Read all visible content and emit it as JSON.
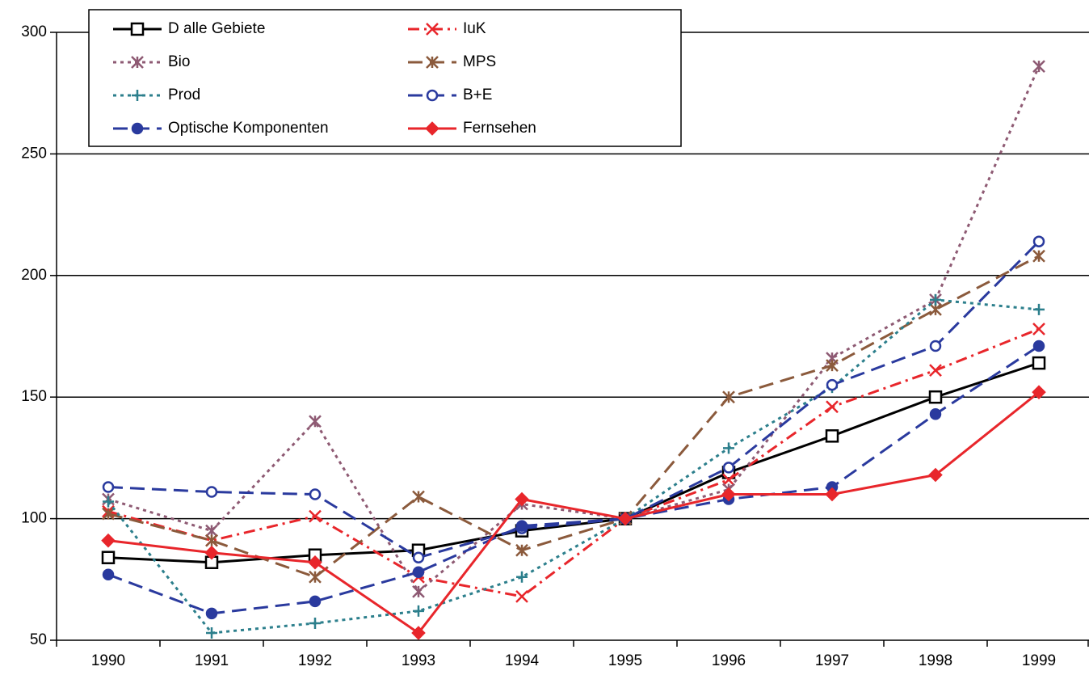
{
  "chart_data": {
    "type": "line",
    "categories": [
      "1990",
      "1991",
      "1992",
      "1993",
      "1994",
      "1995",
      "1996",
      "1997",
      "1998",
      "1999"
    ],
    "series": [
      {
        "name": "D alle Gebiete",
        "color": "#000000",
        "dash": "solid",
        "marker": "square",
        "values": [
          84,
          82,
          85,
          87,
          95,
          100,
          119,
          134,
          150,
          164
        ]
      },
      {
        "name": "IuK",
        "color": "#e8262b",
        "dash": "dashdot",
        "marker": "x",
        "values": [
          103,
          91,
          101,
          76,
          68,
          100,
          116,
          146,
          161,
          178
        ]
      },
      {
        "name": "Bio",
        "color": "#8e5a73",
        "dash": "dotted",
        "marker": "asterisk",
        "values": [
          108,
          95,
          140,
          70,
          106,
          100,
          112,
          166,
          190,
          286
        ]
      },
      {
        "name": "MPS",
        "color": "#8b5a3c",
        "dash": "dashed",
        "marker": "asterisk",
        "values": [
          102,
          91,
          76,
          109,
          87,
          100,
          150,
          163,
          186,
          208
        ]
      },
      {
        "name": "Prod",
        "color": "#2c7f8c",
        "dash": "dotted",
        "marker": "plus",
        "values": [
          107,
          53,
          57,
          62,
          76,
          100,
          129,
          154,
          190,
          186
        ]
      },
      {
        "name": "B+E",
        "color": "#2a3a9e",
        "dash": "dashed",
        "marker": "open-circle",
        "values": [
          113,
          111,
          110,
          84,
          96,
          100,
          121,
          155,
          171,
          214
        ]
      },
      {
        "name": "Optische Komponenten",
        "color": "#2a3a9e",
        "dash": "dashed",
        "marker": "circle",
        "values": [
          77,
          61,
          66,
          78,
          97,
          100,
          108,
          113,
          143,
          171
        ]
      },
      {
        "name": "Fernsehen",
        "color": "#e8262b",
        "dash": "solid",
        "marker": "diamond",
        "values": [
          91,
          86,
          82,
          53,
          108,
          100,
          110,
          110,
          118,
          152
        ]
      }
    ],
    "ylim": [
      50,
      300
    ],
    "yticks": [
      50,
      100,
      150,
      200,
      250,
      300
    ],
    "grid": true,
    "legend": "top-left"
  }
}
